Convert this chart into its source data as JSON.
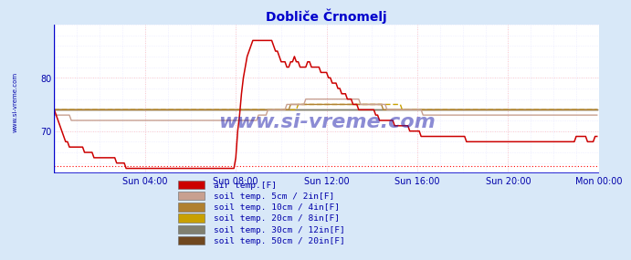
{
  "title": "Dobliče Črnomelj",
  "title_color": "#0000cc",
  "bg_color": "#d8e8f8",
  "plot_bg_color": "#ffffff",
  "xlim": [
    0,
    288
  ],
  "ylim": [
    62,
    90
  ],
  "yticks": [
    70,
    80
  ],
  "xtick_labels": [
    "Sun 04:00",
    "Sun 08:00",
    "Sun 12:00",
    "Sun 16:00",
    "Sun 20:00",
    "Mon 00:00"
  ],
  "xtick_positions": [
    48,
    96,
    144,
    192,
    240,
    288
  ],
  "grid_color_major": "#ffbbbb",
  "grid_color_minor": "#ddddff",
  "watermark": "www.si-vreme.com",
  "watermark_color": "#1a1aaa",
  "legend_labels": [
    "air temp.[F]",
    "soil temp. 5cm / 2in[F]",
    "soil temp. 10cm / 4in[F]",
    "soil temp. 20cm / 8in[F]",
    "soil temp. 30cm / 12in[F]",
    "soil temp. 50cm / 20in[F]"
  ],
  "legend_colors": [
    "#cc0000",
    "#c8a090",
    "#b08030",
    "#c8a000",
    "#808070",
    "#704820"
  ],
  "air_temp": [
    74,
    73,
    72,
    71,
    70,
    69,
    68,
    68,
    67,
    67,
    67,
    67,
    67,
    67,
    67,
    67,
    66,
    66,
    66,
    66,
    66,
    65,
    65,
    65,
    65,
    65,
    65,
    65,
    65,
    65,
    65,
    65,
    65,
    64,
    64,
    64,
    64,
    64,
    63,
    63,
    63,
    63,
    63,
    63,
    63,
    63,
    63,
    63,
    63,
    63,
    63,
    63,
    63,
    63,
    63,
    63,
    63,
    63,
    63,
    63,
    63,
    63,
    63,
    63,
    63,
    63,
    63,
    63,
    63,
    63,
    63,
    63,
    63,
    63,
    63,
    63,
    63,
    63,
    63,
    63,
    63,
    63,
    63,
    63,
    63,
    63,
    63,
    63,
    63,
    63,
    63,
    63,
    63,
    63,
    63,
    63,
    65,
    70,
    73,
    77,
    80,
    82,
    84,
    85,
    86,
    87,
    87,
    87,
    87,
    87,
    87,
    87,
    87,
    87,
    87,
    87,
    86,
    85,
    85,
    84,
    83,
    83,
    83,
    82,
    82,
    83,
    83,
    84,
    83,
    83,
    82,
    82,
    82,
    82,
    83,
    83,
    82,
    82,
    82,
    82,
    82,
    81,
    81,
    81,
    81,
    80,
    80,
    79,
    79,
    79,
    78,
    78,
    77,
    77,
    77,
    76,
    76,
    76,
    75,
    75,
    75,
    74,
    74,
    74,
    74,
    74,
    74,
    74,
    74,
    74,
    73,
    73,
    72,
    72,
    72,
    72,
    72,
    72,
    72,
    72,
    71,
    71,
    71,
    71,
    71,
    71,
    71,
    71,
    70,
    70,
    70,
    70,
    70,
    70,
    69,
    69,
    69,
    69,
    69,
    69,
    69,
    69,
    69,
    69,
    69,
    69,
    69,
    69,
    69,
    69,
    69,
    69,
    69,
    69,
    69,
    69,
    69,
    69,
    68,
    68,
    68,
    68,
    68,
    68,
    68,
    68,
    68,
    68,
    68,
    68,
    68,
    68,
    68,
    68,
    68,
    68,
    68,
    68,
    68,
    68,
    68,
    68,
    68,
    68,
    68,
    68,
    68,
    68,
    68,
    68,
    68,
    68,
    68,
    68,
    68,
    68,
    68,
    68,
    68,
    68,
    68,
    68,
    68,
    68,
    68,
    68,
    68,
    68,
    68,
    68,
    68,
    68,
    68,
    68,
    68,
    68,
    69,
    69,
    69,
    69,
    69,
    69,
    68,
    68,
    68,
    68,
    69,
    69
  ],
  "soil5": [
    73,
    73,
    73,
    73,
    73,
    73,
    73,
    73,
    73,
    72,
    72,
    72,
    72,
    72,
    72,
    72,
    72,
    72,
    72,
    72,
    72,
    72,
    72,
    72,
    72,
    72,
    72,
    72,
    72,
    72,
    72,
    72,
    72,
    72,
    72,
    72,
    72,
    72,
    72,
    72,
    72,
    72,
    72,
    72,
    72,
    72,
    72,
    72,
    72,
    72,
    72,
    72,
    72,
    72,
    72,
    72,
    72,
    72,
    72,
    72,
    72,
    72,
    72,
    72,
    72,
    72,
    72,
    72,
    72,
    72,
    72,
    72,
    72,
    72,
    72,
    72,
    72,
    72,
    72,
    72,
    72,
    72,
    72,
    72,
    72,
    72,
    72,
    72,
    72,
    72,
    72,
    72,
    72,
    72,
    72,
    72,
    72,
    72,
    72,
    72,
    72,
    72,
    72,
    72,
    72,
    72,
    72,
    72,
    73,
    73,
    73,
    73,
    73,
    74,
    74,
    74,
    74,
    74,
    74,
    74,
    74,
    74,
    74,
    75,
    75,
    75,
    75,
    75,
    75,
    75,
    75,
    75,
    75,
    76,
    76,
    76,
    76,
    76,
    76,
    76,
    76,
    76,
    76,
    76,
    76,
    76,
    76,
    76,
    76,
    76,
    76,
    76,
    76,
    76,
    76,
    76,
    76,
    76,
    76,
    76,
    76,
    76,
    75,
    75,
    75,
    75,
    75,
    75,
    75,
    75,
    75,
    75,
    75,
    75,
    75,
    75,
    74,
    74,
    74,
    74,
    74,
    74,
    74,
    74,
    74,
    74,
    74,
    74,
    74,
    74,
    74,
    74,
    74,
    74,
    74,
    73,
    73,
    73,
    73,
    73,
    73,
    73,
    73,
    73,
    73,
    73,
    73,
    73,
    73,
    73,
    73,
    73,
    73,
    73,
    73,
    73,
    73,
    73,
    73,
    73,
    73,
    73,
    73,
    73,
    73,
    73,
    73,
    73,
    73,
    73,
    73,
    73,
    73,
    73,
    73,
    73,
    73,
    73,
    73,
    73,
    73,
    73,
    73,
    73,
    73,
    73,
    73,
    73,
    73,
    73,
    73,
    73,
    73,
    73,
    73,
    73,
    73,
    73,
    73,
    73,
    73,
    73,
    73,
    73,
    73,
    73,
    73,
    73,
    73,
    73,
    73,
    73,
    73,
    73,
    73,
    73,
    73,
    73,
    73,
    73,
    73,
    73,
    73,
    73,
    73,
    73,
    73,
    73
  ],
  "soil10": [
    74,
    74,
    74,
    74,
    74,
    74,
    74,
    74,
    74,
    74,
    74,
    74,
    74,
    74,
    74,
    74,
    74,
    74,
    74,
    74,
    74,
    74,
    74,
    74,
    74,
    74,
    74,
    74,
    74,
    74,
    74,
    74,
    74,
    74,
    74,
    74,
    74,
    74,
    74,
    74,
    74,
    74,
    74,
    74,
    74,
    74,
    74,
    74,
    74,
    74,
    74,
    74,
    74,
    74,
    74,
    74,
    74,
    74,
    74,
    74,
    74,
    74,
    74,
    74,
    74,
    74,
    74,
    74,
    74,
    74,
    74,
    74,
    74,
    74,
    74,
    74,
    74,
    74,
    74,
    74,
    74,
    74,
    74,
    74,
    74,
    74,
    74,
    74,
    74,
    74,
    74,
    74,
    74,
    74,
    74,
    74,
    74,
    74,
    74,
    74,
    74,
    74,
    74,
    74,
    74,
    74,
    74,
    74,
    74,
    74,
    74,
    74,
    74,
    74,
    74,
    74,
    74,
    74,
    74,
    74,
    74,
    74,
    74,
    74,
    74,
    75,
    75,
    75,
    75,
    75,
    75,
    75,
    75,
    75,
    75,
    75,
    75,
    75,
    75,
    75,
    75,
    75,
    75,
    75,
    75,
    75,
    75,
    75,
    75,
    75,
    75,
    75,
    75,
    75,
    75,
    75,
    75,
    75,
    75,
    75,
    75,
    75,
    75,
    75,
    75,
    75,
    75,
    75,
    75,
    75,
    75,
    75,
    75,
    75,
    74,
    74,
    74,
    74,
    74,
    74,
    74,
    74,
    74,
    74,
    74,
    74,
    74,
    74,
    74,
    74,
    74,
    74,
    74,
    74,
    74,
    74,
    74,
    74,
    74,
    74,
    74,
    74,
    74,
    74,
    74,
    74,
    74,
    74,
    74,
    74,
    74,
    74,
    74,
    74,
    74,
    74,
    74,
    74,
    74,
    74,
    74,
    74,
    74,
    74,
    74,
    74,
    74,
    74,
    74,
    74,
    74,
    74,
    74,
    74,
    74,
    74,
    74,
    74,
    74,
    74,
    74,
    74,
    74,
    74,
    74,
    74,
    74,
    74,
    74,
    74,
    74,
    74,
    74,
    74,
    74,
    74,
    74,
    74,
    74,
    74,
    74,
    74,
    74,
    74,
    74,
    74,
    74,
    74,
    74,
    74,
    74,
    74,
    74,
    74,
    74,
    74,
    74,
    74,
    74,
    74,
    74,
    74,
    74,
    74,
    74,
    74,
    74,
    74
  ],
  "soil20": [
    74,
    74,
    74,
    74,
    74,
    74,
    74,
    74,
    74,
    74,
    74,
    74,
    74,
    74,
    74,
    74,
    74,
    74,
    74,
    74,
    74,
    74,
    74,
    74,
    74,
    74,
    74,
    74,
    74,
    74,
    74,
    74,
    74,
    74,
    74,
    74,
    74,
    74,
    74,
    74,
    74,
    74,
    74,
    74,
    74,
    74,
    74,
    74,
    74,
    74,
    74,
    74,
    74,
    74,
    74,
    74,
    74,
    74,
    74,
    74,
    74,
    74,
    74,
    74,
    74,
    74,
    74,
    74,
    74,
    74,
    74,
    74,
    74,
    74,
    74,
    74,
    74,
    74,
    74,
    74,
    74,
    74,
    74,
    74,
    74,
    74,
    74,
    74,
    74,
    74,
    74,
    74,
    74,
    74,
    74,
    74,
    74,
    74,
    74,
    74,
    74,
    74,
    74,
    74,
    74,
    74,
    74,
    74,
    74,
    74,
    74,
    74,
    74,
    74,
    74,
    74,
    74,
    74,
    74,
    74,
    74,
    74,
    74,
    74,
    74,
    74,
    74,
    74,
    74,
    75,
    75,
    75,
    75,
    75,
    75,
    75,
    75,
    75,
    75,
    75,
    75,
    75,
    75,
    75,
    75,
    75,
    75,
    75,
    75,
    75,
    75,
    75,
    75,
    75,
    75,
    75,
    75,
    75,
    75,
    75,
    75,
    75,
    75,
    75,
    75,
    75,
    75,
    75,
    75,
    75,
    75,
    75,
    75,
    75,
    75,
    75,
    75,
    75,
    75,
    75,
    75,
    75,
    75,
    75,
    74,
    74,
    74,
    74,
    74,
    74,
    74,
    74,
    74,
    74,
    74,
    74,
    74,
    74,
    74,
    74,
    74,
    74,
    74,
    74,
    74,
    74,
    74,
    74,
    74,
    74,
    74,
    74,
    74,
    74,
    74,
    74,
    74,
    74,
    74,
    74,
    74,
    74,
    74,
    74,
    74,
    74,
    74,
    74,
    74,
    74,
    74,
    74,
    74,
    74,
    74,
    74,
    74,
    74,
    74,
    74,
    74,
    74,
    74,
    74,
    74,
    74,
    74,
    74,
    74,
    74,
    74,
    74,
    74,
    74,
    74,
    74,
    74,
    74,
    74,
    74,
    74,
    74,
    74,
    74,
    74,
    74,
    74,
    74,
    74,
    74,
    74,
    74,
    74,
    74,
    74,
    74,
    74,
    74,
    74,
    74,
    74,
    74,
    74,
    74,
    74,
    74,
    74,
    74
  ],
  "soil30": [
    74,
    74,
    74,
    74,
    74,
    74,
    74,
    74,
    74,
    74,
    74,
    74,
    74,
    74,
    74,
    74,
    74,
    74,
    74,
    74,
    74,
    74,
    74,
    74,
    74,
    74,
    74,
    74,
    74,
    74,
    74,
    74,
    74,
    74,
    74,
    74,
    74,
    74,
    74,
    74,
    74,
    74,
    74,
    74,
    74,
    74,
    74,
    74,
    74,
    74,
    74,
    74,
    74,
    74,
    74,
    74,
    74,
    74,
    74,
    74,
    74,
    74,
    74,
    74,
    74,
    74,
    74,
    74,
    74,
    74,
    74,
    74,
    74,
    74,
    74,
    74,
    74,
    74,
    74,
    74,
    74,
    74,
    74,
    74,
    74,
    74,
    74,
    74,
    74,
    74,
    74,
    74,
    74,
    74,
    74,
    74,
    74,
    74,
    74,
    74,
    74,
    74,
    74,
    74,
    74,
    74,
    74,
    74,
    74,
    74,
    74,
    74,
    74,
    74,
    74,
    74,
    74,
    74,
    74,
    74,
    74,
    74,
    74,
    74,
    74,
    74,
    74,
    74,
    74,
    74,
    74,
    74,
    74,
    74,
    74,
    74,
    74,
    74,
    74,
    74,
    74,
    74,
    74,
    74,
    74,
    74,
    74,
    74,
    74,
    74,
    74,
    74,
    74,
    74,
    74,
    74,
    74,
    74,
    74,
    74,
    74,
    74,
    74,
    74,
    74,
    74,
    74,
    74,
    74,
    74,
    74,
    74,
    74,
    74,
    74,
    74,
    74,
    74,
    74,
    74,
    74,
    74,
    74,
    74,
    74,
    74,
    74,
    74,
    74,
    74,
    74,
    74,
    74,
    74,
    74,
    74,
    74,
    74,
    74,
    74,
    74,
    74,
    74,
    74,
    74,
    74,
    74,
    74,
    74,
    74,
    74,
    74,
    74,
    74,
    74,
    74,
    74,
    74,
    74,
    74,
    74,
    74,
    74,
    74,
    74,
    74,
    74,
    74,
    74,
    74,
    74,
    74,
    74,
    74,
    74,
    74,
    74,
    74,
    74,
    74,
    74,
    74,
    74,
    74,
    74,
    74,
    74,
    74,
    74,
    74,
    74,
    74,
    74,
    74,
    74,
    74,
    74,
    74,
    74,
    74,
    74,
    74,
    74,
    74,
    74,
    74,
    74,
    74,
    74,
    74,
    74,
    74,
    74,
    74,
    74,
    74,
    74,
    74,
    74,
    74,
    74,
    74,
    74,
    74,
    74,
    74,
    74,
    74
  ],
  "soil50": [
    74,
    74,
    74,
    74,
    74,
    74,
    74,
    74,
    74,
    74,
    74,
    74,
    74,
    74,
    74,
    74,
    74,
    74,
    74,
    74,
    74,
    74,
    74,
    74,
    74,
    74,
    74,
    74,
    74,
    74,
    74,
    74,
    74,
    74,
    74,
    74,
    74,
    74,
    74,
    74,
    74,
    74,
    74,
    74,
    74,
    74,
    74,
    74,
    74,
    74,
    74,
    74,
    74,
    74,
    74,
    74,
    74,
    74,
    74,
    74,
    74,
    74,
    74,
    74,
    74,
    74,
    74,
    74,
    74,
    74,
    74,
    74,
    74,
    74,
    74,
    74,
    74,
    74,
    74,
    74,
    74,
    74,
    74,
    74,
    74,
    74,
    74,
    74,
    74,
    74,
    74,
    74,
    74,
    74,
    74,
    74,
    74,
    74,
    74,
    74,
    74,
    74,
    74,
    74,
    74,
    74,
    74,
    74,
    74,
    74,
    74,
    74,
    74,
    74,
    74,
    74,
    74,
    74,
    74,
    74,
    74,
    74,
    74,
    74,
    74,
    74,
    74,
    74,
    74,
    74,
    74,
    74,
    74,
    74,
    74,
    74,
    74,
    74,
    74,
    74,
    74,
    74,
    74,
    74,
    74,
    74,
    74,
    74,
    74,
    74,
    74,
    74,
    74,
    74,
    74,
    74,
    74,
    74,
    74,
    74,
    74,
    74,
    74,
    74,
    74,
    74,
    74,
    74,
    74,
    74,
    74,
    74,
    74,
    74,
    74,
    74,
    74,
    74,
    74,
    74,
    74,
    74,
    74,
    74,
    74,
    74,
    74,
    74,
    74,
    74,
    74,
    74,
    74,
    74,
    74,
    74,
    74,
    74,
    74,
    74,
    74,
    74,
    74,
    74,
    74,
    74,
    74,
    74,
    74,
    74,
    74,
    74,
    74,
    74,
    74,
    74,
    74,
    74,
    74,
    74,
    74,
    74,
    74,
    74,
    74,
    74,
    74,
    74,
    74,
    74,
    74,
    74,
    74,
    74,
    74,
    74,
    74,
    74,
    74,
    74,
    74,
    74,
    74,
    74,
    74,
    74,
    74,
    74,
    74,
    74,
    74,
    74,
    74,
    74,
    74,
    74,
    74,
    74,
    74,
    74,
    74,
    74,
    74,
    74,
    74,
    74,
    74,
    74,
    74,
    74,
    74,
    74,
    74,
    74,
    74,
    74,
    74,
    74,
    74,
    74,
    74,
    74,
    74,
    74,
    74,
    74,
    74,
    74
  ],
  "hline_value": 63.5,
  "hline_color": "#ff0000",
  "sidebar_text": "www.si-vreme.com",
  "sidebar_color": "#0000aa"
}
